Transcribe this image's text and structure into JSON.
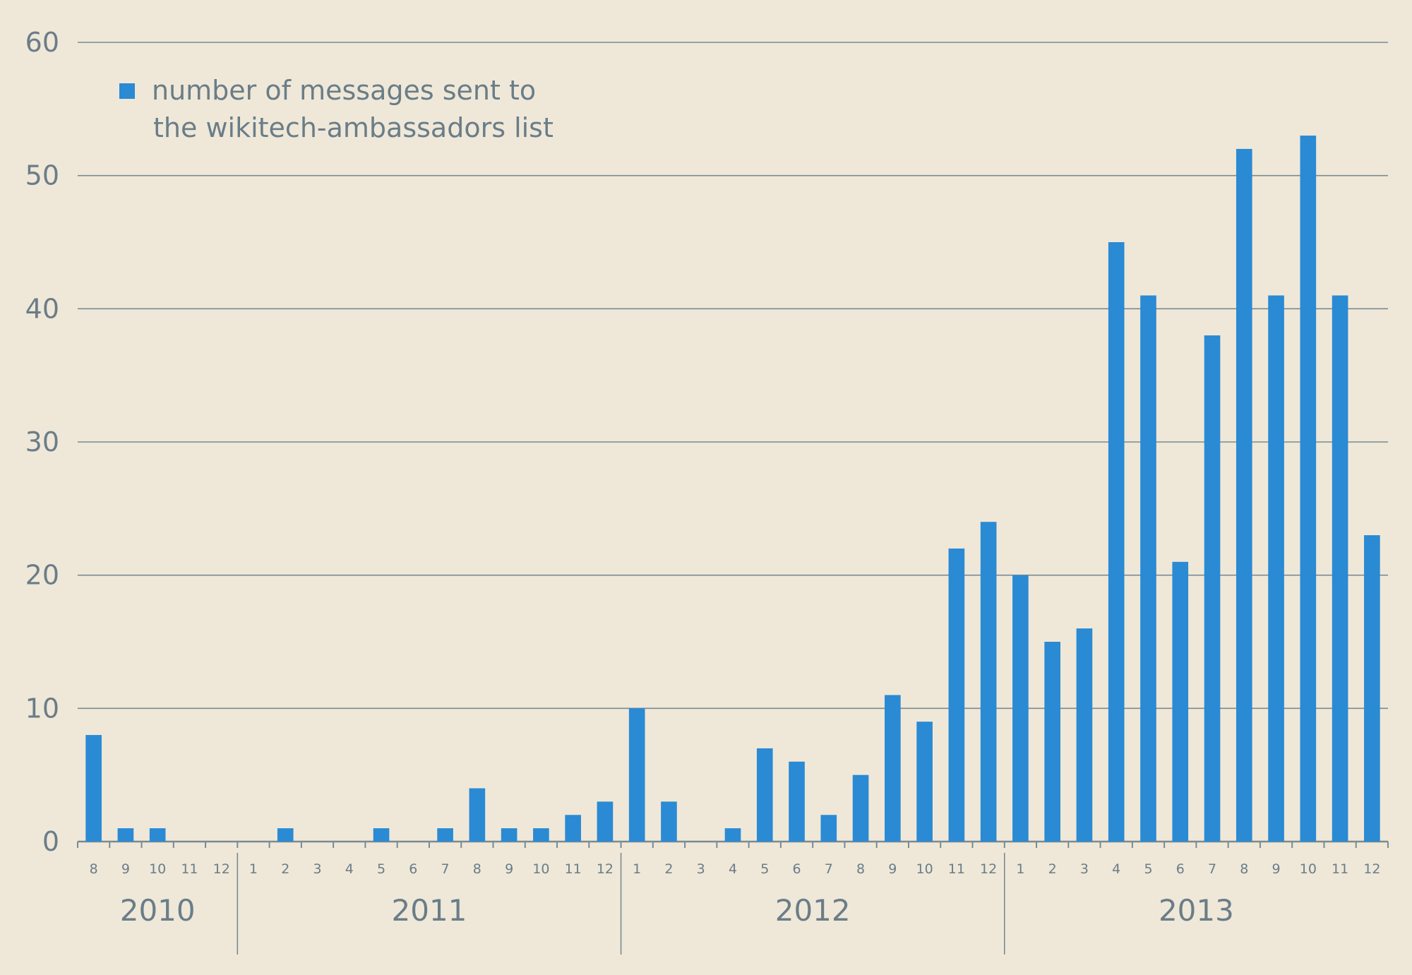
{
  "chart_data": {
    "type": "bar",
    "legend": {
      "position": "top-left",
      "lines": [
        "number of messages sent to",
        "the wikitech-ambassadors list"
      ],
      "color": "#2a8ad4"
    },
    "ylim": [
      0,
      60
    ],
    "yticks": [
      0,
      10,
      20,
      30,
      40,
      50,
      60
    ],
    "grid": true,
    "colors": {
      "bar": "#2a8ad4",
      "axis": "#7a8a92",
      "text": "#6a7d88",
      "background": "#efe8d8"
    },
    "groups": [
      {
        "year": "2010",
        "months": [
          "8",
          "9",
          "10",
          "11",
          "12"
        ]
      },
      {
        "year": "2011",
        "months": [
          "1",
          "2",
          "3",
          "4",
          "5",
          "6",
          "7",
          "8",
          "9",
          "10",
          "11",
          "12"
        ]
      },
      {
        "year": "2012",
        "months": [
          "1",
          "2",
          "3",
          "4",
          "5",
          "6",
          "7",
          "8",
          "9",
          "10",
          "11",
          "12"
        ]
      },
      {
        "year": "2013",
        "months": [
          "1",
          "2",
          "3",
          "4",
          "5",
          "6",
          "7",
          "8",
          "9",
          "10",
          "11",
          "12"
        ]
      }
    ],
    "values": [
      8,
      1,
      1,
      0,
      0,
      0,
      1,
      0,
      0,
      1,
      0,
      1,
      4,
      1,
      1,
      2,
      3,
      10,
      3,
      0,
      1,
      7,
      6,
      2,
      5,
      11,
      9,
      22,
      24,
      20,
      15,
      16,
      45,
      41,
      21,
      38,
      52,
      41,
      53,
      41,
      23
    ]
  }
}
